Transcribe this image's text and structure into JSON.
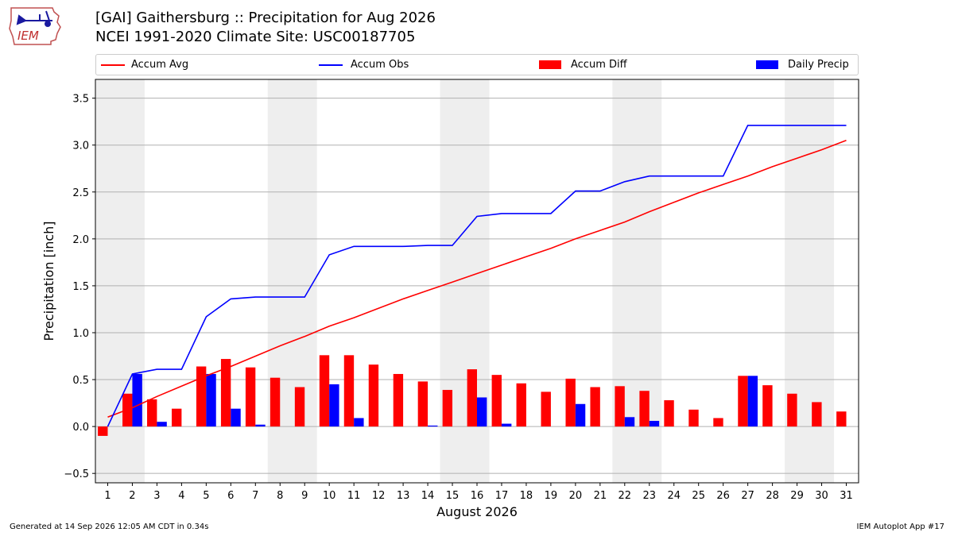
{
  "header": {
    "title": "[GAI] Gaithersburg :: Precipitation for Aug 2026",
    "subtitle": "NCEI 1991-2020 Climate Site: USC00187705",
    "logo_text": "IEM"
  },
  "legend": {
    "items": [
      {
        "label": "Accum Avg",
        "kind": "line",
        "color": "#ff0000"
      },
      {
        "label": "Accum Obs",
        "kind": "line",
        "color": "#0000ff"
      },
      {
        "label": "Accum Diff",
        "kind": "box",
        "color": "#ff0000"
      },
      {
        "label": "Daily Precip",
        "kind": "box",
        "color": "#0000ff"
      }
    ]
  },
  "footer": {
    "left": "Generated at 14 Sep 2026 12:05 AM CDT in 0.34s",
    "right": "IEM Autoplot App #17"
  },
  "colors": {
    "avg": "#ff0000",
    "obs": "#0000ff",
    "diff": "#ff0000",
    "daily": "#0000ff",
    "weekend_shade": "#eeeeee",
    "grid": "#b0b0b0"
  },
  "chart_data": {
    "type": "bar",
    "xlabel": "August 2026",
    "ylabel": "Precipitation [inch]",
    "xlim": [
      0.5,
      31.5
    ],
    "ylim": [
      -0.6,
      3.7
    ],
    "yticks": [
      -0.5,
      0.0,
      0.5,
      1.0,
      1.5,
      2.0,
      2.5,
      3.0,
      3.5
    ],
    "ytick_labels": [
      "−0.5",
      "0.0",
      "0.5",
      "1.0",
      "1.5",
      "2.0",
      "2.5",
      "3.0",
      "3.5"
    ],
    "grid": "horizontal",
    "legend_position": "top",
    "shaded_days": [
      [
        1,
        2
      ],
      [
        8,
        9
      ],
      [
        15,
        16
      ],
      [
        22,
        23
      ],
      [
        29,
        30
      ]
    ],
    "days": [
      1,
      2,
      3,
      4,
      5,
      6,
      7,
      8,
      9,
      10,
      11,
      12,
      13,
      14,
      15,
      16,
      17,
      18,
      19,
      20,
      21,
      22,
      23,
      24,
      25,
      26,
      27,
      28,
      29,
      30,
      31
    ],
    "series": [
      {
        "name": "Accum Avg",
        "kind": "line",
        "values": [
          0.1,
          0.2,
          0.32,
          0.43,
          0.54,
          0.64,
          0.75,
          0.86,
          0.96,
          1.07,
          1.16,
          1.26,
          1.36,
          1.45,
          1.54,
          1.63,
          1.72,
          1.81,
          1.9,
          2.0,
          2.09,
          2.18,
          2.29,
          2.39,
          2.49,
          2.58,
          2.67,
          2.77,
          2.86,
          2.95,
          3.05
        ]
      },
      {
        "name": "Accum Obs",
        "kind": "line",
        "values": [
          0.0,
          0.56,
          0.61,
          0.61,
          1.17,
          1.36,
          1.38,
          1.38,
          1.38,
          1.83,
          1.92,
          1.92,
          1.92,
          1.93,
          1.93,
          2.24,
          2.27,
          2.27,
          2.27,
          2.51,
          2.51,
          2.61,
          2.67,
          2.67,
          2.67,
          2.67,
          3.21,
          3.21,
          3.21,
          3.21,
          3.21
        ]
      },
      {
        "name": "Accum Diff",
        "kind": "bar",
        "values": [
          -0.1,
          0.35,
          0.29,
          0.19,
          0.64,
          0.72,
          0.63,
          0.52,
          0.42,
          0.76,
          0.76,
          0.66,
          0.56,
          0.48,
          0.39,
          0.61,
          0.55,
          0.46,
          0.37,
          0.51,
          0.42,
          0.43,
          0.38,
          0.28,
          0.18,
          0.09,
          0.54,
          0.44,
          0.35,
          0.26,
          0.16
        ]
      },
      {
        "name": "Daily Precip",
        "kind": "bar",
        "values": [
          0.0,
          0.56,
          0.05,
          0.0,
          0.56,
          0.19,
          0.02,
          0.0,
          0.0,
          0.45,
          0.09,
          0.0,
          0.0,
          0.01,
          0.0,
          0.31,
          0.03,
          0.0,
          0.0,
          0.24,
          0.0,
          0.1,
          0.06,
          0.0,
          0.0,
          0.0,
          0.54,
          0.0,
          0.0,
          0.0,
          0.0
        ]
      }
    ]
  }
}
